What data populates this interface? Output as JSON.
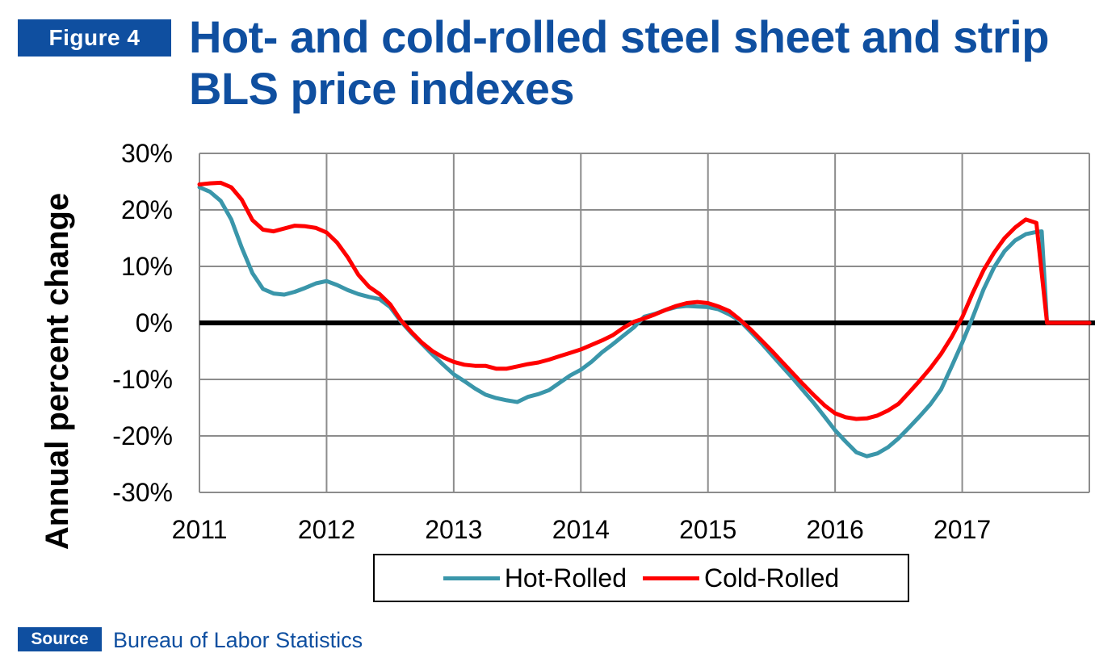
{
  "figure_label": "Figure 4",
  "title": "Hot- and cold-rolled steel sheet and strip BLS price indexes",
  "source_label": "Source",
  "source_text": "Bureau of Labor Statistics",
  "colors": {
    "brand": "#0f4fa0",
    "hot": "#3a96aa",
    "cold": "#ff0000",
    "zero_line": "#000000",
    "grid": "#8c8c8c"
  },
  "chart_data": {
    "type": "line",
    "ylabel": "Annual percent  change",
    "xlabel": "",
    "ylim": [
      -30,
      30
    ],
    "xlim": [
      2011,
      2018
    ],
    "y_ticks": [
      30,
      20,
      10,
      0,
      -10,
      -20,
      -30
    ],
    "y_tick_labels": [
      "30%",
      "20%",
      "10%",
      "0%",
      "-10%",
      "-20%",
      "-30%"
    ],
    "x_ticks": [
      2011,
      2012,
      2013,
      2014,
      2015,
      2016,
      2017
    ],
    "x_tick_labels": [
      "2011",
      "2012",
      "2013",
      "2014",
      "2015",
      "2016",
      "2017"
    ],
    "grid": true,
    "legend_position": "bottom",
    "series": [
      {
        "name": "Hot-Rolled",
        "points": [
          [
            2011.0,
            24.0
          ],
          [
            2011.083,
            23.2
          ],
          [
            2011.167,
            21.6
          ],
          [
            2011.25,
            18.3
          ],
          [
            2011.333,
            13.3
          ],
          [
            2011.417,
            8.8
          ],
          [
            2011.5,
            6.0
          ],
          [
            2011.583,
            5.2
          ],
          [
            2011.667,
            5.0
          ],
          [
            2011.75,
            5.5
          ],
          [
            2011.833,
            6.2
          ],
          [
            2011.917,
            7.0
          ],
          [
            2012.0,
            7.4
          ],
          [
            2012.083,
            6.7
          ],
          [
            2012.167,
            5.8
          ],
          [
            2012.25,
            5.1
          ],
          [
            2012.333,
            4.6
          ],
          [
            2012.417,
            4.2
          ],
          [
            2012.5,
            2.8
          ],
          [
            2012.583,
            0.3
          ],
          [
            2012.667,
            -1.8
          ],
          [
            2012.75,
            -3.7
          ],
          [
            2012.833,
            -5.6
          ],
          [
            2012.917,
            -7.4
          ],
          [
            2013.0,
            -9.1
          ],
          [
            2013.083,
            -10.3
          ],
          [
            2013.167,
            -11.6
          ],
          [
            2013.25,
            -12.7
          ],
          [
            2013.333,
            -13.3
          ],
          [
            2013.417,
            -13.7
          ],
          [
            2013.5,
            -14.0
          ],
          [
            2013.583,
            -13.1
          ],
          [
            2013.667,
            -12.6
          ],
          [
            2013.75,
            -11.9
          ],
          [
            2013.833,
            -10.6
          ],
          [
            2013.917,
            -9.3
          ],
          [
            2014.0,
            -8.3
          ],
          [
            2014.083,
            -6.9
          ],
          [
            2014.167,
            -5.2
          ],
          [
            2014.25,
            -3.8
          ],
          [
            2014.333,
            -2.3
          ],
          [
            2014.417,
            -0.8
          ],
          [
            2014.5,
            1.1
          ],
          [
            2014.583,
            1.6
          ],
          [
            2014.667,
            2.3
          ],
          [
            2014.75,
            2.8
          ],
          [
            2014.833,
            3.0
          ],
          [
            2014.917,
            2.9
          ],
          [
            2015.0,
            2.8
          ],
          [
            2015.083,
            2.4
          ],
          [
            2015.167,
            1.5
          ],
          [
            2015.25,
            0.4
          ],
          [
            2015.333,
            -1.5
          ],
          [
            2015.417,
            -3.5
          ],
          [
            2015.5,
            -5.6
          ],
          [
            2015.583,
            -7.7
          ],
          [
            2015.667,
            -9.8
          ],
          [
            2015.75,
            -12.0
          ],
          [
            2015.833,
            -14.2
          ],
          [
            2015.917,
            -16.6
          ],
          [
            2016.0,
            -19.0
          ],
          [
            2016.083,
            -21.0
          ],
          [
            2016.167,
            -22.9
          ],
          [
            2016.25,
            -23.6
          ],
          [
            2016.333,
            -23.1
          ],
          [
            2016.417,
            -22.0
          ],
          [
            2016.5,
            -20.4
          ],
          [
            2016.583,
            -18.5
          ],
          [
            2016.667,
            -16.5
          ],
          [
            2016.75,
            -14.4
          ],
          [
            2016.833,
            -11.8
          ],
          [
            2016.917,
            -7.7
          ],
          [
            2017.0,
            -3.5
          ],
          [
            2017.083,
            1.0
          ],
          [
            2017.167,
            5.9
          ],
          [
            2017.25,
            9.8
          ],
          [
            2017.333,
            12.7
          ],
          [
            2017.417,
            14.6
          ],
          [
            2017.5,
            15.7
          ],
          [
            2017.583,
            16.1
          ],
          [
            2017.625,
            16.2
          ],
          [
            2017.667,
            0.0
          ],
          [
            2017.75,
            0.0
          ],
          [
            2017.833,
            0.0
          ],
          [
            2017.917,
            0.0
          ],
          [
            2018.0,
            0.0
          ]
        ]
      },
      {
        "name": "Cold-Rolled",
        "points": [
          [
            2011.0,
            24.5
          ],
          [
            2011.083,
            24.7
          ],
          [
            2011.167,
            24.8
          ],
          [
            2011.25,
            24.0
          ],
          [
            2011.333,
            21.8
          ],
          [
            2011.417,
            18.2
          ],
          [
            2011.5,
            16.5
          ],
          [
            2011.583,
            16.2
          ],
          [
            2011.667,
            16.7
          ],
          [
            2011.75,
            17.2
          ],
          [
            2011.833,
            17.1
          ],
          [
            2011.917,
            16.8
          ],
          [
            2012.0,
            16.0
          ],
          [
            2012.083,
            14.2
          ],
          [
            2012.167,
            11.6
          ],
          [
            2012.25,
            8.5
          ],
          [
            2012.333,
            6.4
          ],
          [
            2012.417,
            5.1
          ],
          [
            2012.5,
            3.3
          ],
          [
            2012.583,
            0.5
          ],
          [
            2012.667,
            -1.6
          ],
          [
            2012.75,
            -3.5
          ],
          [
            2012.833,
            -5.0
          ],
          [
            2012.917,
            -6.1
          ],
          [
            2013.0,
            -6.9
          ],
          [
            2013.083,
            -7.4
          ],
          [
            2013.167,
            -7.6
          ],
          [
            2013.25,
            -7.6
          ],
          [
            2013.333,
            -8.1
          ],
          [
            2013.417,
            -8.1
          ],
          [
            2013.5,
            -7.7
          ],
          [
            2013.583,
            -7.3
          ],
          [
            2013.667,
            -7.0
          ],
          [
            2013.75,
            -6.5
          ],
          [
            2013.833,
            -5.9
          ],
          [
            2013.917,
            -5.3
          ],
          [
            2014.0,
            -4.7
          ],
          [
            2014.083,
            -3.9
          ],
          [
            2014.167,
            -3.1
          ],
          [
            2014.25,
            -2.2
          ],
          [
            2014.333,
            -0.9
          ],
          [
            2014.417,
            0.2
          ],
          [
            2014.5,
            0.8
          ],
          [
            2014.583,
            1.5
          ],
          [
            2014.667,
            2.3
          ],
          [
            2014.75,
            3.0
          ],
          [
            2014.833,
            3.5
          ],
          [
            2014.917,
            3.7
          ],
          [
            2015.0,
            3.5
          ],
          [
            2015.083,
            2.9
          ],
          [
            2015.167,
            2.1
          ],
          [
            2015.25,
            0.6
          ],
          [
            2015.333,
            -1.1
          ],
          [
            2015.417,
            -3.0
          ],
          [
            2015.5,
            -4.9
          ],
          [
            2015.583,
            -6.9
          ],
          [
            2015.667,
            -8.9
          ],
          [
            2015.75,
            -10.9
          ],
          [
            2015.833,
            -12.8
          ],
          [
            2015.917,
            -14.6
          ],
          [
            2016.0,
            -16.0
          ],
          [
            2016.083,
            -16.7
          ],
          [
            2016.167,
            -17.0
          ],
          [
            2016.25,
            -16.9
          ],
          [
            2016.333,
            -16.4
          ],
          [
            2016.417,
            -15.5
          ],
          [
            2016.5,
            -14.3
          ],
          [
            2016.583,
            -12.3
          ],
          [
            2016.667,
            -10.2
          ],
          [
            2016.75,
            -8.0
          ],
          [
            2016.833,
            -5.5
          ],
          [
            2016.917,
            -2.5
          ],
          [
            2017.0,
            1.0
          ],
          [
            2017.083,
            5.3
          ],
          [
            2017.167,
            9.3
          ],
          [
            2017.25,
            12.4
          ],
          [
            2017.333,
            15.0
          ],
          [
            2017.417,
            16.9
          ],
          [
            2017.5,
            18.3
          ],
          [
            2017.583,
            17.7
          ],
          [
            2017.667,
            0.0
          ],
          [
            2017.75,
            0.0
          ],
          [
            2017.833,
            0.0
          ],
          [
            2017.917,
            0.0
          ],
          [
            2018.0,
            0.0
          ]
        ]
      }
    ]
  }
}
